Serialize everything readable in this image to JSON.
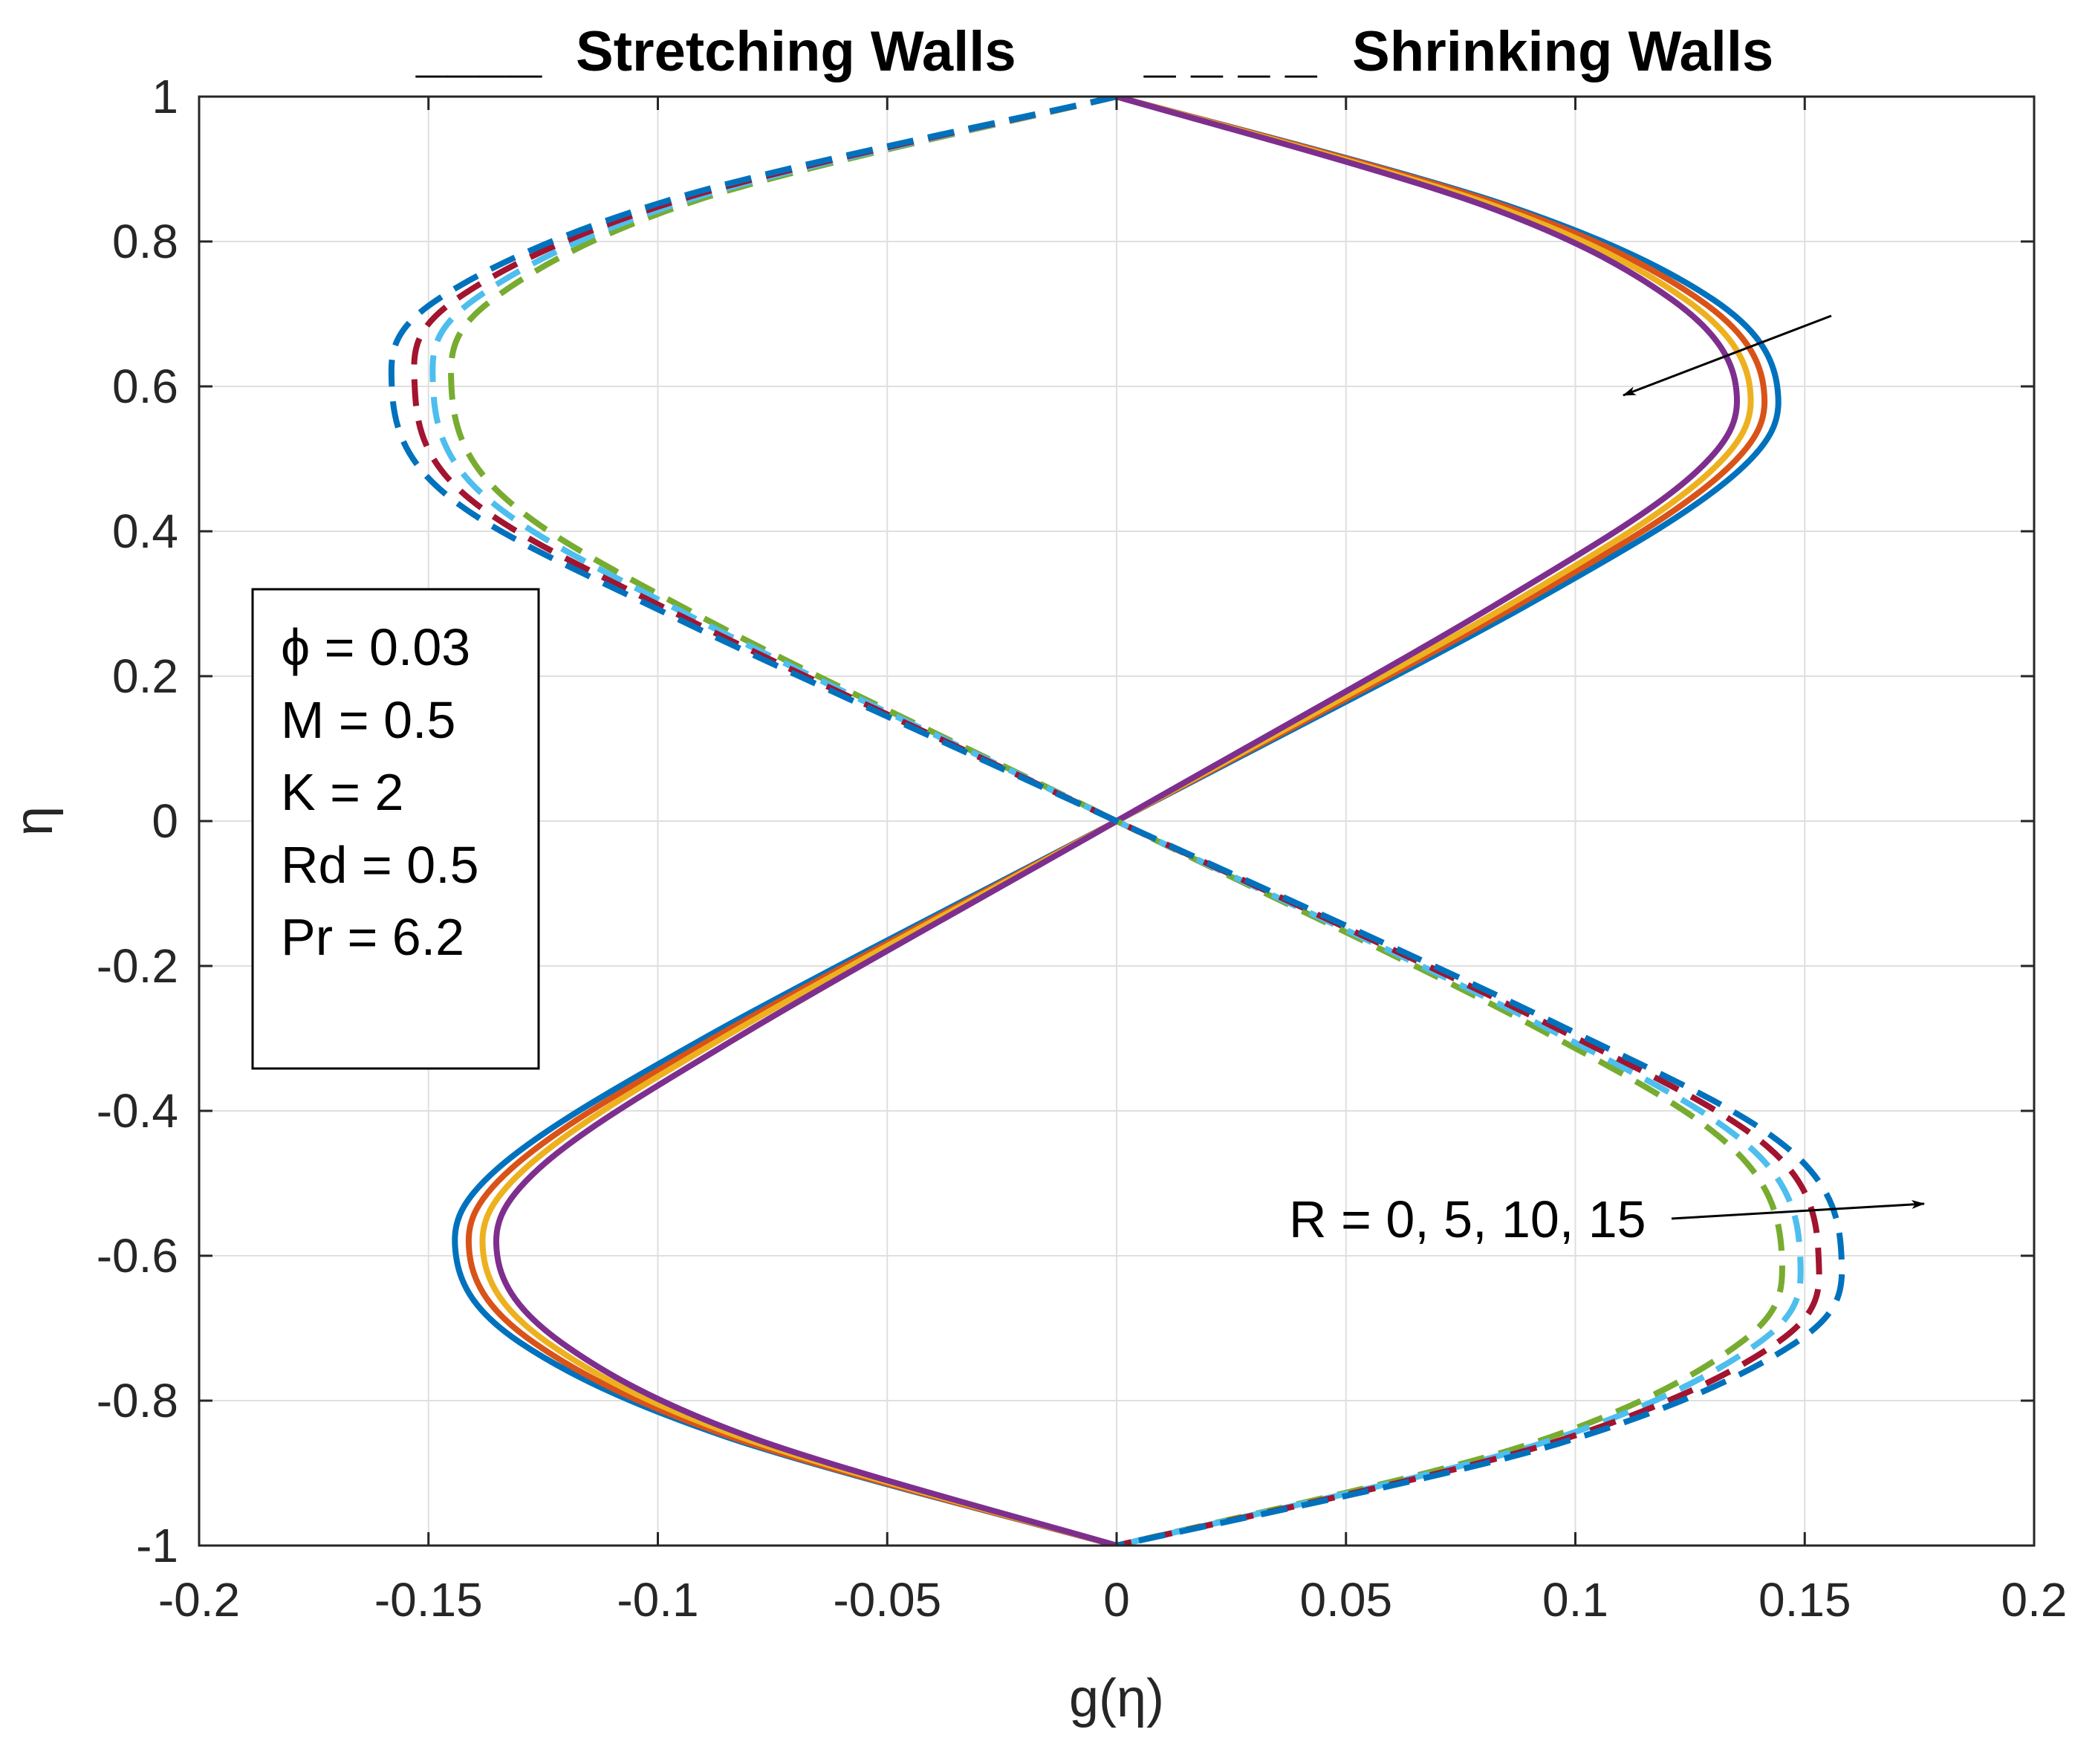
{
  "chart_data": {
    "type": "line",
    "header": {
      "solid_marker": "____",
      "solid_label": "Stretching Walls",
      "dashed_marker": "_ _ _ _",
      "dashed_label": "Shrinking Walls"
    },
    "xlabel": "g(η)",
    "ylabel": "η",
    "xlim": [
      -0.2,
      0.2
    ],
    "ylim": [
      -1,
      1
    ],
    "xticks": [
      -0.2,
      -0.15,
      -0.1,
      -0.05,
      0,
      0.05,
      0.1,
      0.15,
      0.2
    ],
    "yticks": [
      -1,
      -0.8,
      -0.6,
      -0.4,
      -0.2,
      0,
      0.2,
      0.4,
      0.6,
      0.8,
      1
    ],
    "xtick_labels": [
      "-0.2",
      "-0.15",
      "-0.1",
      "-0.05",
      "0",
      "0.05",
      "0.1",
      "0.15",
      "0.2"
    ],
    "ytick_labels": [
      "-1",
      "-0.8",
      "-0.6",
      "-0.4",
      "-0.2",
      "0",
      "0.2",
      "0.4",
      "0.6",
      "0.8",
      "1"
    ],
    "grid": true,
    "params": [
      "ϕ = 0.03",
      "M = 0.5",
      "K = 2",
      "Rd = 0.5",
      "Pr = 6.2"
    ],
    "annotation": "R = 0, 5, 10, 15",
    "series": [
      {
        "name": "Stretching R = 0",
        "style": "solid",
        "color": "#0072BD",
        "points": [
          [
            0,
            1
          ],
          [
            0.085,
            0.85
          ],
          [
            0.13,
            0.72
          ],
          [
            0.144,
            0.6
          ],
          [
            0.135,
            0.48
          ],
          [
            0.09,
            0.3
          ],
          [
            0,
            0
          ],
          [
            -0.09,
            -0.3
          ],
          [
            -0.135,
            -0.48
          ],
          [
            -0.144,
            -0.6
          ],
          [
            -0.13,
            -0.72
          ],
          [
            -0.085,
            -0.85
          ],
          [
            0,
            -1
          ]
        ]
      },
      {
        "name": "Stretching R = 5",
        "style": "solid",
        "color": "#D95319",
        "points": [
          [
            0,
            1
          ],
          [
            0.084,
            0.85
          ],
          [
            0.127,
            0.72
          ],
          [
            0.141,
            0.6
          ],
          [
            0.132,
            0.48
          ],
          [
            0.088,
            0.3
          ],
          [
            0,
            0
          ],
          [
            -0.088,
            -0.3
          ],
          [
            -0.132,
            -0.48
          ],
          [
            -0.141,
            -0.6
          ],
          [
            -0.127,
            -0.72
          ],
          [
            -0.084,
            -0.85
          ],
          [
            0,
            -1
          ]
        ]
      },
      {
        "name": "Stretching R = 10",
        "style": "solid",
        "color": "#EDB120",
        "points": [
          [
            0,
            1
          ],
          [
            0.082,
            0.85
          ],
          [
            0.124,
            0.72
          ],
          [
            0.138,
            0.6
          ],
          [
            0.129,
            0.48
          ],
          [
            0.086,
            0.3
          ],
          [
            0,
            0
          ],
          [
            -0.086,
            -0.3
          ],
          [
            -0.129,
            -0.48
          ],
          [
            -0.138,
            -0.6
          ],
          [
            -0.124,
            -0.72
          ],
          [
            -0.082,
            -0.85
          ],
          [
            0,
            -1
          ]
        ]
      },
      {
        "name": "Stretching R = 15",
        "style": "solid",
        "color": "#7E2F8E",
        "points": [
          [
            0,
            1
          ],
          [
            0.08,
            0.85
          ],
          [
            0.121,
            0.72
          ],
          [
            0.135,
            0.6
          ],
          [
            0.126,
            0.48
          ],
          [
            0.083,
            0.3
          ],
          [
            0,
            0
          ],
          [
            -0.083,
            -0.3
          ],
          [
            -0.126,
            -0.48
          ],
          [
            -0.135,
            -0.6
          ],
          [
            -0.121,
            -0.72
          ],
          [
            -0.08,
            -0.85
          ],
          [
            0,
            -1
          ]
        ]
      },
      {
        "name": "Shrinking R = 0",
        "style": "dashed",
        "color": "#77AC30",
        "points": [
          [
            0,
            1
          ],
          [
            -0.09,
            0.86
          ],
          [
            -0.136,
            0.72
          ],
          [
            -0.145,
            0.6
          ],
          [
            -0.134,
            0.45
          ],
          [
            -0.09,
            0.28
          ],
          [
            0,
            0
          ],
          [
            0.09,
            -0.28
          ],
          [
            0.134,
            -0.45
          ],
          [
            0.145,
            -0.6
          ],
          [
            0.136,
            -0.72
          ],
          [
            0.09,
            -0.86
          ],
          [
            0,
            -1
          ]
        ]
      },
      {
        "name": "Shrinking R = 5",
        "style": "dashed",
        "color": "#4DBEEE",
        "points": [
          [
            0,
            1
          ],
          [
            -0.092,
            0.86
          ],
          [
            -0.14,
            0.72
          ],
          [
            -0.149,
            0.6
          ],
          [
            -0.138,
            0.45
          ],
          [
            -0.092,
            0.28
          ],
          [
            0,
            0
          ],
          [
            0.092,
            -0.28
          ],
          [
            0.138,
            -0.45
          ],
          [
            0.149,
            -0.6
          ],
          [
            0.14,
            -0.72
          ],
          [
            0.092,
            -0.86
          ],
          [
            0,
            -1
          ]
        ]
      },
      {
        "name": "Shrinking R = 10",
        "style": "dashed",
        "color": "#A2142F",
        "points": [
          [
            0,
            1
          ],
          [
            -0.094,
            0.86
          ],
          [
            -0.144,
            0.72
          ],
          [
            -0.153,
            0.6
          ],
          [
            -0.142,
            0.45
          ],
          [
            -0.094,
            0.28
          ],
          [
            0,
            0
          ],
          [
            0.094,
            -0.28
          ],
          [
            0.142,
            -0.45
          ],
          [
            0.153,
            -0.6
          ],
          [
            0.144,
            -0.72
          ],
          [
            0.094,
            -0.86
          ],
          [
            0,
            -1
          ]
        ]
      },
      {
        "name": "Shrinking R = 15",
        "style": "dashed",
        "color": "#0072BD",
        "points": [
          [
            0,
            1
          ],
          [
            -0.096,
            0.86
          ],
          [
            -0.148,
            0.72
          ],
          [
            -0.158,
            0.6
          ],
          [
            -0.146,
            0.45
          ],
          [
            -0.096,
            0.28
          ],
          [
            0,
            0
          ],
          [
            0.096,
            -0.28
          ],
          [
            0.146,
            -0.45
          ],
          [
            0.158,
            -0.6
          ],
          [
            0.148,
            -0.72
          ],
          [
            0.096,
            -0.86
          ],
          [
            0,
            -1
          ]
        ]
      }
    ]
  }
}
